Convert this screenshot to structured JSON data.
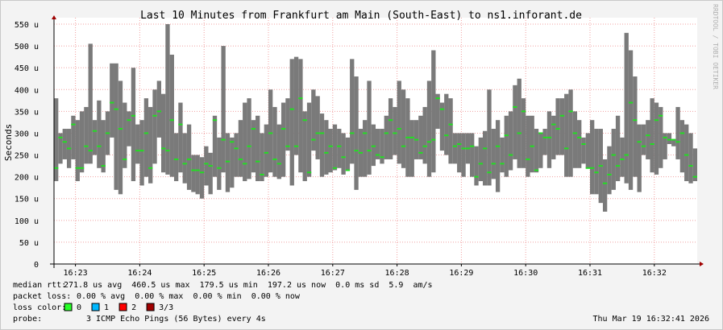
{
  "chart_data": {
    "type": "smokeping",
    "title": "Last 10 Minutes from Frankfurt am Main (South-East) to ns1.inforant.de",
    "y_label": "Seconds",
    "side_label": "RRDTOOL / TOBI OETIKER",
    "xlim": [
      0,
      600
    ],
    "xticks": [
      {
        "value": 20,
        "label": "16:23"
      },
      {
        "value": 80,
        "label": "16:24"
      },
      {
        "value": 140,
        "label": "16:25"
      },
      {
        "value": 200,
        "label": "16:26"
      },
      {
        "value": 260,
        "label": "16:27"
      },
      {
        "value": 320,
        "label": "16:28"
      },
      {
        "value": 380,
        "label": "16:29"
      },
      {
        "value": 440,
        "label": "16:30"
      },
      {
        "value": 500,
        "label": "16:31"
      },
      {
        "value": 560,
        "label": "16:32"
      }
    ],
    "ylim": [
      0,
      550
    ],
    "yticks": [
      0,
      {
        "value": 50,
        "label": "50 u"
      },
      {
        "value": 100,
        "label": "100 u"
      },
      {
        "value": 150,
        "label": "150 u"
      },
      {
        "value": 200,
        "label": "200 u"
      },
      {
        "value": 250,
        "label": "250 u"
      },
      {
        "value": 300,
        "label": "300 u"
      },
      {
        "value": 350,
        "label": "350 u"
      },
      {
        "value": 400,
        "label": "400 u"
      },
      {
        "value": 450,
        "label": "450 u"
      },
      {
        "value": 500,
        "label": "500 u"
      },
      {
        "value": 550,
        "label": "550 u"
      }
    ],
    "grid": true,
    "median_color": "#22dd22",
    "range_color": "#7a7a7a",
    "x": [
      2,
      6,
      10,
      14,
      18,
      22,
      26,
      30,
      34,
      38,
      42,
      46,
      50,
      54,
      58,
      62,
      66,
      70,
      74,
      78,
      82,
      86,
      90,
      94,
      98,
      102,
      106,
      110,
      114,
      118,
      122,
      126,
      130,
      134,
      138,
      142,
      146,
      150,
      154,
      158,
      162,
      166,
      170,
      174,
      178,
      182,
      186,
      190,
      194,
      198,
      202,
      206,
      210,
      214,
      218,
      222,
      226,
      230,
      234,
      238,
      242,
      246,
      250,
      254,
      258,
      262,
      266,
      270,
      274,
      278,
      282,
      286,
      290,
      294,
      298,
      302,
      306,
      310,
      314,
      318,
      322,
      326,
      330,
      334,
      338,
      342,
      346,
      350,
      354,
      358,
      362,
      366,
      370,
      374,
      378,
      382,
      386,
      390,
      394,
      398,
      402,
      406,
      410,
      414,
      418,
      422,
      426,
      430,
      434,
      438,
      442,
      446,
      450,
      454,
      458,
      462,
      466,
      470,
      474,
      478,
      482,
      486,
      490,
      494,
      498,
      502,
      506,
      510,
      514,
      518,
      522,
      526,
      530,
      534,
      538,
      542,
      546,
      550,
      554,
      558,
      562,
      566,
      570,
      574,
      578,
      582,
      586,
      590,
      594,
      598
    ],
    "median": [
      220,
      290,
      280,
      265,
      320,
      220,
      220,
      270,
      260,
      305,
      270,
      225,
      300,
      370,
      355,
      310,
      240,
      330,
      340,
      260,
      260,
      300,
      220,
      340,
      350,
      265,
      260,
      330,
      240,
      320,
      230,
      240,
      215,
      215,
      210,
      230,
      225,
      330,
      220,
      285,
      235,
      280,
      265,
      240,
      230,
      270,
      310,
      235,
      205,
      255,
      300,
      240,
      230,
      310,
      270,
      355,
      270,
      380,
      330,
      210,
      285,
      300,
      300,
      255,
      270,
      220,
      270,
      245,
      215,
      300,
      260,
      255,
      300,
      260,
      270,
      250,
      245,
      300,
      330,
      300,
      310,
      270,
      290,
      290,
      285,
      255,
      270,
      280,
      285,
      380,
      355,
      295,
      320,
      270,
      275,
      265,
      265,
      270,
      200,
      230,
      265,
      210,
      230,
      270,
      230,
      295,
      250,
      360,
      300,
      350,
      240,
      270,
      215,
      300,
      290,
      290,
      320,
      310,
      340,
      265,
      350,
      300,
      290,
      275,
      220,
      220,
      210,
      225,
      185,
      205,
      250,
      225,
      240,
      250,
      370,
      330,
      280,
      270,
      295,
      275,
      330,
      340,
      290,
      285,
      285,
      280,
      300,
      250,
      225,
      200
    ],
    "min": [
      190,
      230,
      240,
      220,
      240,
      190,
      210,
      230,
      230,
      250,
      220,
      210,
      250,
      290,
      170,
      160,
      220,
      270,
      190,
      230,
      180,
      200,
      185,
      230,
      290,
      210,
      205,
      200,
      190,
      210,
      185,
      170,
      165,
      160,
      150,
      180,
      160,
      200,
      170,
      210,
      165,
      175,
      200,
      200,
      190,
      195,
      210,
      190,
      190,
      200,
      210,
      200,
      195,
      200,
      260,
      180,
      250,
      210,
      190,
      200,
      260,
      240,
      200,
      205,
      210,
      215,
      220,
      205,
      215,
      230,
      170,
      200,
      200,
      205,
      225,
      240,
      230,
      240,
      240,
      250,
      230,
      220,
      200,
      200,
      240,
      240,
      230,
      200,
      210,
      310,
      260,
      250,
      230,
      230,
      210,
      200,
      230,
      200,
      180,
      190,
      180,
      180,
      195,
      165,
      210,
      200,
      215,
      240,
      220,
      220,
      200,
      210,
      210,
      220,
      250,
      220,
      240,
      250,
      250,
      200,
      200,
      220,
      220,
      230,
      220,
      160,
      160,
      140,
      120,
      160,
      170,
      190,
      200,
      185,
      170,
      200,
      165,
      250,
      240,
      210,
      205,
      220,
      240,
      275,
      270,
      240,
      210,
      190,
      185,
      190
    ],
    "max": [
      380,
      300,
      310,
      310,
      340,
      330,
      350,
      360,
      505,
      330,
      375,
      330,
      350,
      460,
      460,
      420,
      370,
      350,
      450,
      320,
      330,
      380,
      360,
      400,
      420,
      390,
      550,
      480,
      300,
      370,
      300,
      320,
      250,
      250,
      245,
      270,
      255,
      340,
      290,
      500,
      300,
      290,
      300,
      330,
      370,
      380,
      330,
      340,
      300,
      320,
      400,
      360,
      320,
      370,
      380,
      470,
      475,
      470,
      350,
      370,
      400,
      385,
      345,
      330,
      310,
      320,
      310,
      300,
      290,
      470,
      430,
      310,
      330,
      420,
      320,
      310,
      310,
      340,
      380,
      360,
      420,
      400,
      380,
      330,
      330,
      340,
      360,
      420,
      490,
      390,
      370,
      390,
      380,
      300,
      300,
      300,
      300,
      300,
      270,
      290,
      305,
      400,
      310,
      330,
      290,
      340,
      350,
      410,
      425,
      380,
      340,
      340,
      310,
      300,
      310,
      350,
      340,
      380,
      380,
      390,
      400,
      350,
      330,
      290,
      300,
      330,
      310,
      310,
      240,
      270,
      310,
      340,
      290,
      530,
      490,
      430,
      320,
      320,
      330,
      380,
      370,
      360,
      300,
      300,
      285,
      360,
      330,
      320,
      300,
      265
    ]
  },
  "legend": {
    "median_label": "median rtt:",
    "median_text": "271.8 us avg  460.5 us max  179.5 us min  197.2 us now  0.0 ms sd  5.9  am/s",
    "loss_label": "packet loss:",
    "loss_text": "0.00 % avg  0.00 % max  0.00 % min  0.00 % now",
    "loss_color_label": "loss color:",
    "loss_colors": [
      {
        "label": "0",
        "color": "#26ff26"
      },
      {
        "label": "1",
        "color": "#00b8ff"
      },
      {
        "label": "2",
        "color": "#ff0000"
      },
      {
        "label": "3/3",
        "color": "#a10000"
      }
    ],
    "probe_label": "probe:",
    "probe_text": "3 ICMP Echo Pings (56 Bytes) every 4s",
    "timestamp": "Thu Mar 19 16:32:41 2026"
  }
}
